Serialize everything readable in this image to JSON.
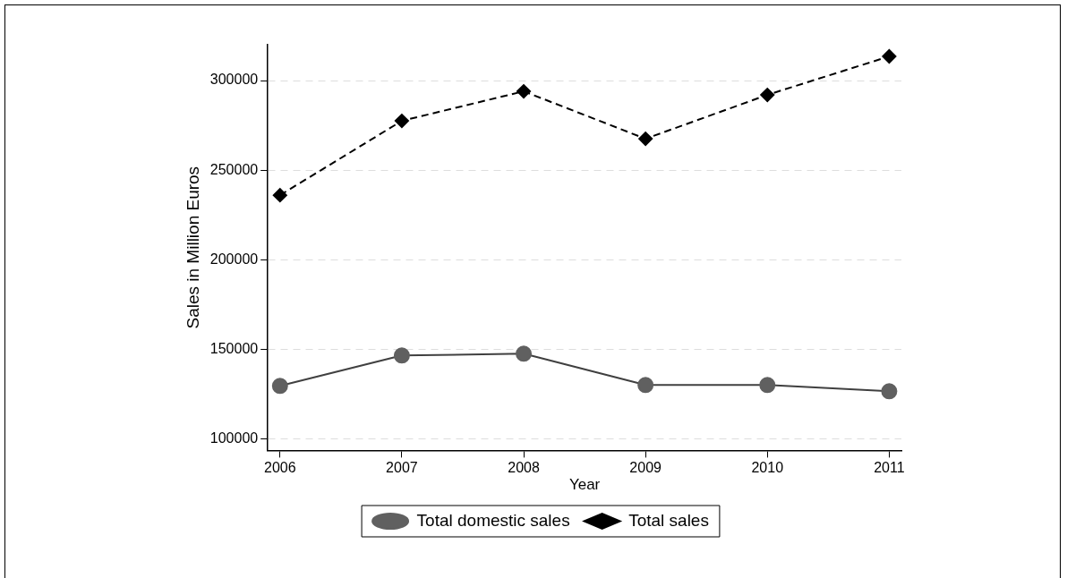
{
  "chart_data": {
    "type": "line",
    "xlabel": "Year",
    "ylabel": "Sales in Million Euros",
    "x": [
      2006,
      2007,
      2008,
      2009,
      2010,
      2011
    ],
    "xlim": [
      2005.9,
      2011.1
    ],
    "xticks": [
      2006,
      2007,
      2008,
      2009,
      2010,
      2011
    ],
    "ylim": [
      93500,
      320000
    ],
    "yticks": [
      100000,
      150000,
      200000,
      250000,
      300000
    ],
    "grid": "y",
    "legend": "bottom",
    "series": [
      {
        "name": "Total domestic sales",
        "color": "#606060",
        "marker": "circle",
        "line_style": "solid",
        "values": [
          129500,
          146500,
          147500,
          130000,
          130000,
          126500
        ]
      },
      {
        "name": "Total sales",
        "color": "#000000",
        "marker": "diamond",
        "line_style": "dashed",
        "values": [
          236000,
          277500,
          294000,
          267500,
          292000,
          313500
        ]
      }
    ]
  }
}
